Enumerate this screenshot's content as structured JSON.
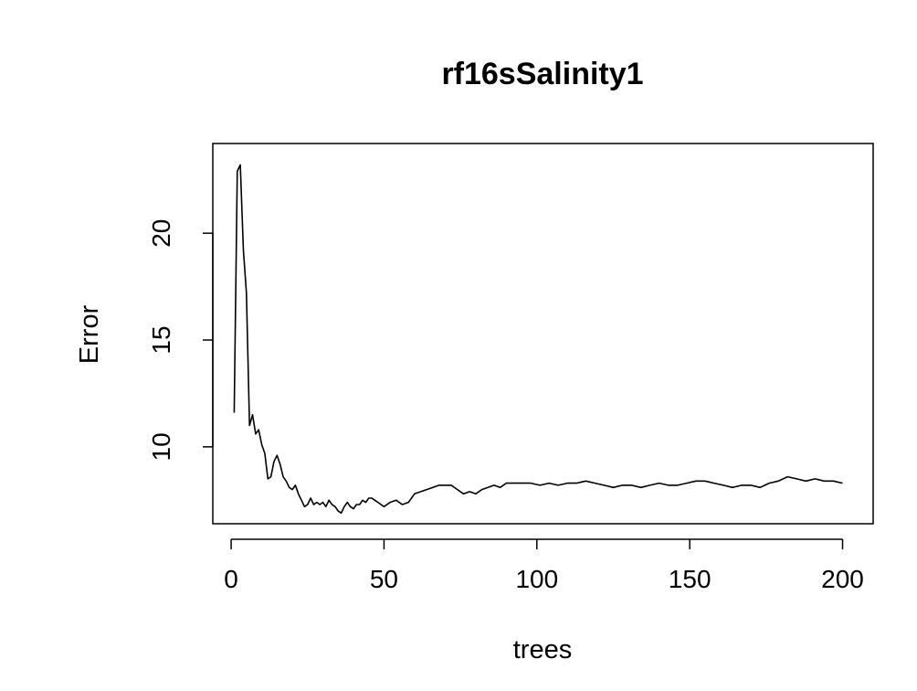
{
  "chart_data": {
    "type": "line",
    "title": "rf16sSalinity1",
    "xlabel": "trees",
    "ylabel": "Error",
    "xlim": [
      -6,
      210
    ],
    "ylim": [
      6.4,
      24.2
    ],
    "x_ticks": [
      0,
      50,
      100,
      150,
      200
    ],
    "y_ticks": [
      10,
      15,
      20
    ],
    "grid": false,
    "legend": "none",
    "line_color": "#000000",
    "series": [
      {
        "x": [
          1,
          2,
          3,
          4,
          5,
          6,
          7,
          8,
          9,
          10,
          11,
          12,
          13,
          14,
          15,
          16,
          17,
          18,
          19,
          20,
          21,
          22,
          23,
          24,
          25,
          26,
          27,
          28,
          29,
          30,
          31,
          32,
          33,
          34,
          35,
          36,
          37,
          38,
          39,
          40,
          41,
          42,
          43,
          44,
          45,
          46,
          47,
          48,
          49,
          50,
          52,
          54,
          56,
          58,
          60,
          62,
          64,
          66,
          68,
          70,
          72,
          74,
          76,
          78,
          80,
          82,
          84,
          86,
          88,
          90,
          92,
          95,
          98,
          101,
          104,
          107,
          110,
          113,
          116,
          119,
          122,
          125,
          128,
          131,
          134,
          137,
          140,
          143,
          146,
          149,
          152,
          155,
          158,
          161,
          164,
          167,
          170,
          173,
          176,
          179,
          182,
          185,
          188,
          191,
          194,
          197,
          200
        ],
        "values": [
          11.6,
          22.9,
          23.2,
          19.2,
          17.2,
          11.0,
          11.5,
          10.6,
          10.8,
          10.1,
          9.7,
          8.5,
          8.6,
          9.3,
          9.6,
          9.2,
          8.6,
          8.4,
          8.1,
          8.0,
          8.2,
          7.8,
          7.5,
          7.2,
          7.3,
          7.6,
          7.3,
          7.4,
          7.3,
          7.4,
          7.2,
          7.5,
          7.3,
          7.2,
          7.0,
          6.9,
          7.2,
          7.4,
          7.2,
          7.1,
          7.3,
          7.3,
          7.5,
          7.4,
          7.6,
          7.6,
          7.5,
          7.4,
          7.3,
          7.2,
          7.4,
          7.5,
          7.3,
          7.4,
          7.8,
          7.9,
          8.0,
          8.1,
          8.2,
          8.2,
          8.2,
          8.0,
          7.8,
          7.9,
          7.8,
          8.0,
          8.1,
          8.2,
          8.1,
          8.3,
          8.3,
          8.3,
          8.3,
          8.2,
          8.3,
          8.2,
          8.3,
          8.3,
          8.4,
          8.3,
          8.2,
          8.1,
          8.2,
          8.2,
          8.1,
          8.2,
          8.3,
          8.2,
          8.2,
          8.3,
          8.4,
          8.4,
          8.3,
          8.2,
          8.1,
          8.2,
          8.2,
          8.1,
          8.3,
          8.4,
          8.6,
          8.5,
          8.4,
          8.5,
          8.4,
          8.4,
          8.3
        ]
      }
    ]
  }
}
